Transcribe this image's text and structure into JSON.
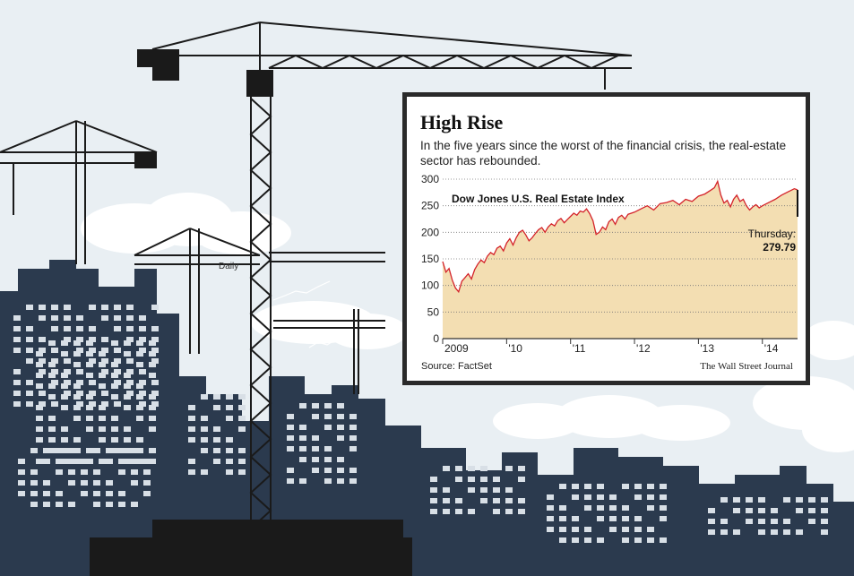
{
  "background": {
    "sky_color": "#e9eff3",
    "building_color": "#2b3a4e",
    "crane_color": "#1a1a1a",
    "window_color": "#d8dfe6",
    "mini_chart_label": "Daily"
  },
  "panel": {
    "title": "High Rise",
    "subtitle": "In the five years since the worst of the financial crisis, the real-estate sector has rebounded.",
    "source": "Source: FactSet",
    "credit": "The Wall Street Journal"
  },
  "chart_data": {
    "type": "area",
    "title": "Dow Jones U.S. Real Estate Index",
    "xlabel": "",
    "ylabel": "",
    "ylim": [
      0,
      300
    ],
    "xlim": [
      2009.0,
      2014.55
    ],
    "y_ticks": [
      0,
      50,
      100,
      150,
      200,
      250,
      300
    ],
    "x_ticks": [
      {
        "value": 2009.0,
        "label": "2009"
      },
      {
        "value": 2010.0,
        "label": "'10"
      },
      {
        "value": 2011.0,
        "label": "'11"
      },
      {
        "value": 2012.0,
        "label": "'12"
      },
      {
        "value": 2013.0,
        "label": "'13"
      },
      {
        "value": 2014.0,
        "label": "'14"
      }
    ],
    "grid": "horizontal",
    "fill_color": "#f3deb2",
    "line_color": "#d4232a",
    "series": [
      {
        "x": [
          2009.0,
          2009.05,
          2009.1,
          2009.15,
          2009.2,
          2009.25,
          2009.3,
          2009.35,
          2009.4,
          2009.45,
          2009.5,
          2009.55,
          2009.6,
          2009.65,
          2009.7,
          2009.75,
          2009.8,
          2009.85,
          2009.9,
          2009.95,
          2010.0,
          2010.05,
          2010.1,
          2010.15,
          2010.2,
          2010.25,
          2010.3,
          2010.35,
          2010.4,
          2010.45,
          2010.5,
          2010.55,
          2010.6,
          2010.65,
          2010.7,
          2010.75,
          2010.8,
          2010.85,
          2010.9,
          2010.95,
          2011.0,
          2011.05,
          2011.1,
          2011.15,
          2011.2,
          2011.25,
          2011.3,
          2011.35,
          2011.4,
          2011.45,
          2011.5,
          2011.55,
          2011.6,
          2011.65,
          2011.7,
          2011.75,
          2011.8,
          2011.85,
          2011.9,
          2011.95,
          2012.0,
          2012.1,
          2012.2,
          2012.3,
          2012.4,
          2012.5,
          2012.6,
          2012.7,
          2012.8,
          2012.9,
          2013.0,
          2013.1,
          2013.2,
          2013.25,
          2013.3,
          2013.35,
          2013.4,
          2013.45,
          2013.5,
          2013.55,
          2013.6,
          2013.65,
          2013.7,
          2013.75,
          2013.8,
          2013.85,
          2013.9,
          2013.95,
          2014.0,
          2014.1,
          2014.2,
          2014.3,
          2014.4,
          2014.5,
          2014.55
        ],
        "values": [
          145,
          125,
          132,
          110,
          95,
          88,
          108,
          115,
          122,
          112,
          130,
          140,
          148,
          143,
          155,
          162,
          158,
          170,
          174,
          165,
          180,
          188,
          176,
          190,
          200,
          204,
          195,
          184,
          190,
          198,
          205,
          209,
          200,
          210,
          216,
          212,
          222,
          226,
          218,
          224,
          230,
          236,
          232,
          240,
          238,
          244,
          235,
          222,
          196,
          200,
          210,
          205,
          220,
          225,
          215,
          228,
          232,
          225,
          234,
          236,
          238,
          244,
          250,
          242,
          254,
          256,
          260,
          252,
          262,
          258,
          268,
          272,
          280,
          284,
          296,
          270,
          255,
          260,
          248,
          262,
          270,
          258,
          262,
          250,
          242,
          248,
          252,
          246,
          250,
          256,
          262,
          270,
          276,
          282,
          279.79
        ]
      }
    ],
    "annotation": {
      "label": "Thursday:",
      "value": "279.79"
    }
  }
}
